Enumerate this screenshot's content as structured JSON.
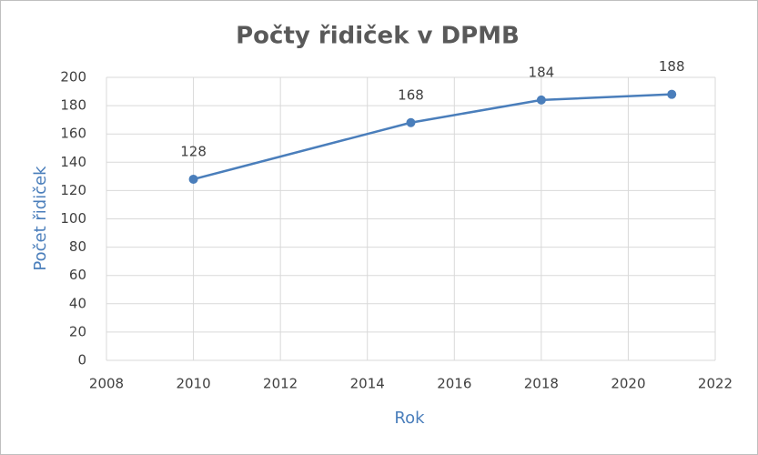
{
  "chart_data": {
    "type": "line",
    "title": "Počty řidiček v DPMB",
    "x_label": "Rok",
    "y_label": "Počet řidiček",
    "x": [
      2010,
      2015,
      2018,
      2021
    ],
    "series": [
      {
        "name": "Počet řidiček",
        "color": "#4a7ebb",
        "values": [
          128,
          168,
          184,
          188
        ]
      }
    ],
    "xlim": [
      2008,
      2022
    ],
    "xticks": [
      2008,
      2010,
      2012,
      2014,
      2016,
      2018,
      2020,
      2022
    ],
    "ylim": [
      0,
      200
    ],
    "yticks": [
      0,
      20,
      40,
      60,
      80,
      100,
      120,
      140,
      160,
      180,
      200
    ],
    "grid": true,
    "data_labels": true
  }
}
